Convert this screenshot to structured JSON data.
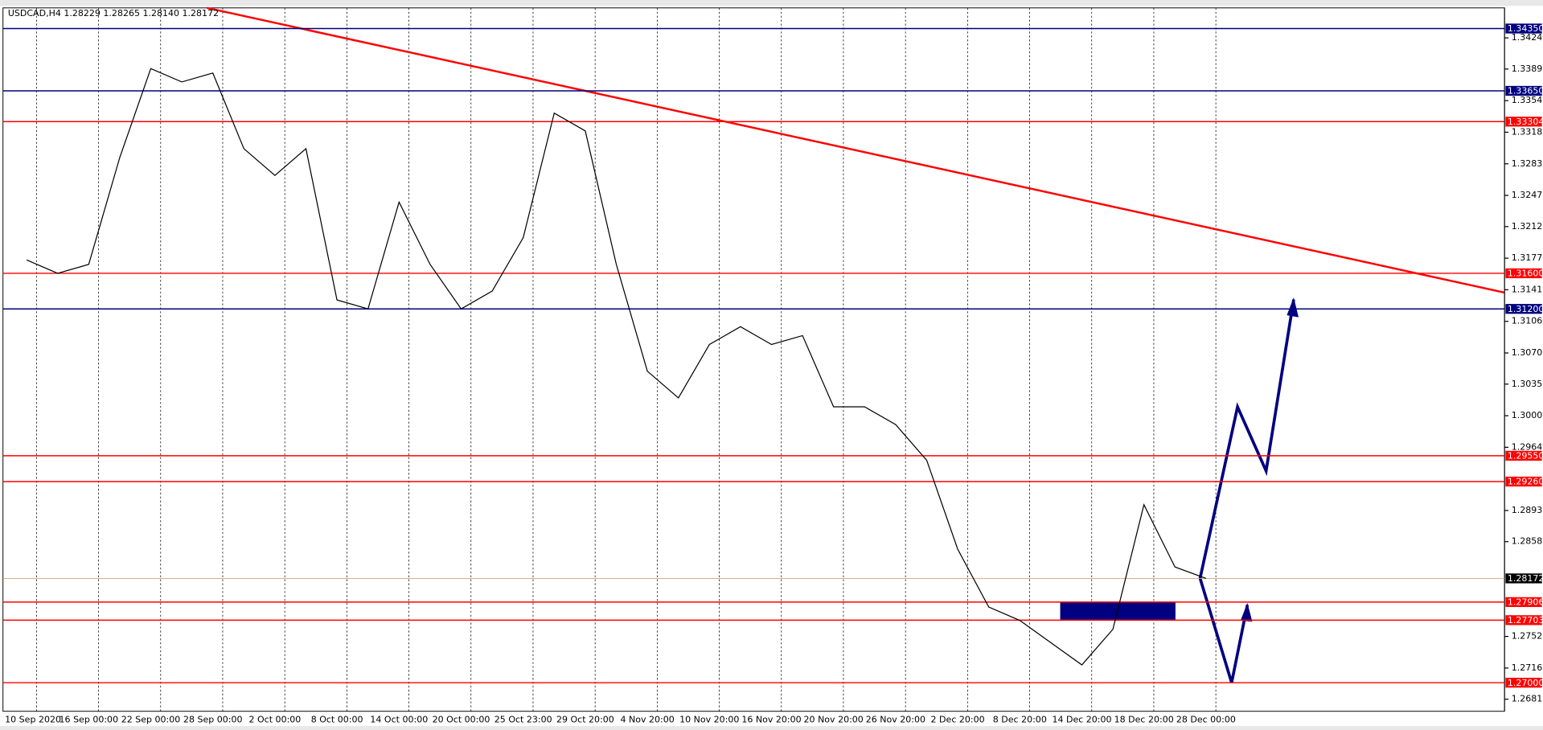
{
  "chart_data": {
    "type": "line",
    "title": "USDCAD,H4  1.28229 1.28265 1.28140 1.28172",
    "categories": [
      "10 Sep 2020",
      null,
      "16 Sep 00:00",
      null,
      "22 Sep 00:00",
      null,
      "28 Sep 00:00",
      null,
      "2 Oct 00:00",
      null,
      "8 Oct 00:00",
      null,
      "14 Oct 00:00",
      null,
      "20 Oct 00:00",
      null,
      "25 Oct 23:00",
      null,
      "29 Oct 20:00",
      null,
      "4 Nov 20:00",
      null,
      "10 Nov 20:00",
      null,
      "16 Nov 20:00",
      null,
      "20 Nov 20:00",
      null,
      "26 Nov 20:00",
      null,
      "2 Dec 20:00",
      null,
      "8 Dec 20:00",
      null,
      "14 Dec 20:00",
      null,
      "18 Dec 20:00",
      null,
      "28 Dec 00:00"
    ],
    "values": [
      1.3175,
      1.316,
      1.317,
      1.329,
      1.339,
      1.3375,
      1.3385,
      1.33,
      1.327,
      1.33,
      1.313,
      1.312,
      1.324,
      1.317,
      1.312,
      1.314,
      1.32,
      1.334,
      1.332,
      1.317,
      1.305,
      1.302,
      1.308,
      1.31,
      1.308,
      1.309,
      1.301,
      1.301,
      1.299,
      1.295,
      1.285,
      1.2785,
      1.277,
      1.2745,
      1.272,
      1.276,
      1.29,
      1.283,
      1.28172
    ],
    "color": "#000000",
    "ylim": [
      1.26679,
      1.34582
    ],
    "yticks": [
      1.34245,
      1.33895,
      {
        "value": 1.3354,
        "label": "1.33540"
      },
      1.33185,
      {
        "value": 1.3283,
        "label": "1.32830"
      },
      1.32475,
      1.32125,
      {
        "value": 1.3177,
        "label": "1.31770"
      },
      1.31415,
      {
        "value": 1.3106,
        "label": "1.31060"
      },
      1.30705,
      1.30355,
      {
        "value": 1.3,
        "label": "1.30000"
      },
      1.29645,
      1.28935,
      1.28585,
      {
        "value": 1.2752,
        "label": "1.27520"
      },
      1.27165,
      1.26815
    ],
    "levels": [
      {
        "value": 1.3435,
        "label": "1.34350",
        "color": "#000080"
      },
      {
        "value": 1.3365,
        "label": "1.33650",
        "color": "#000080"
      },
      {
        "value": 1.33304,
        "label": "1.33304",
        "color": "#ff0000"
      },
      {
        "value": 1.316,
        "label": "1.31600",
        "color": "#ff0000"
      },
      {
        "value": 1.312,
        "label": "1.31200",
        "color": "#000080"
      },
      {
        "value": 1.2955,
        "label": "1.29550",
        "color": "#ff0000"
      },
      {
        "value": 1.2926,
        "label": "1.29260",
        "color": "#ff0000"
      },
      {
        "value": 1.27906,
        "label": "1.27906",
        "color": "#ff0000"
      },
      {
        "value": 1.27703,
        "label": "1.27703",
        "color": "#ff0000"
      },
      {
        "value": 1.27,
        "label": "1.27000",
        "color": "#ff0000"
      },
      {
        "value": 1.28172,
        "label": "1.28172",
        "color": "#000000"
      }
    ]
  }
}
